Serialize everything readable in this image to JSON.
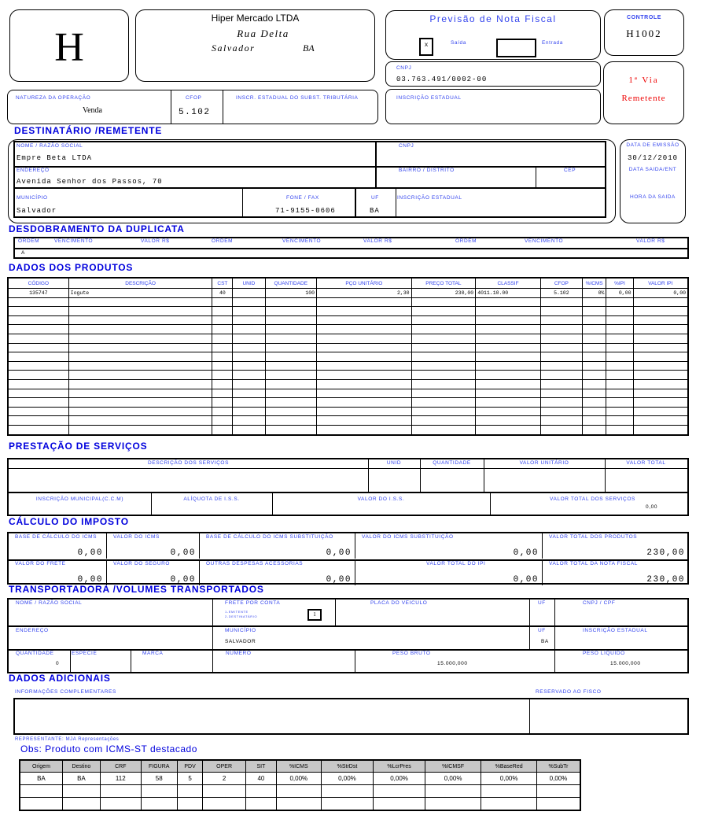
{
  "header": {
    "logo_letter": "H",
    "company": "Hiper Mercado LTDA",
    "street": "Rua Delta",
    "city": "Salvador",
    "state": "BA",
    "doc_title": "Previsão de Nota Fiscal",
    "saida_mark": "x",
    "saida_label": "Saída",
    "entrada_label": "Entrada",
    "controle_label": "CONTROLE",
    "controle_value": "H1002",
    "cnpj_label": "CNPJ",
    "cnpj_value": "03.763.491/0002-00",
    "via_line1": "1ª Via",
    "via_line2": "Remetente",
    "natureza_label": "NATUREZA DA OPERAÇÃO",
    "natureza_value": "Venda",
    "cfop_label": "CFOP",
    "cfop_value": "5.102",
    "inscr_subst_label": "INSCR. ESTADUAL DO SUBST. TRIBUTÁRIA",
    "inscr_estadual_label": "INSCRIÇÃO ESTADUAL"
  },
  "destinatario": {
    "title": "DESTINATÁRIO /REMETENTE",
    "nome_label": "NOME / RAZÃO SOCIAL",
    "nome": "Empre Beta LTDA",
    "cnpj_label": "CNPJ",
    "endereco_label": "ENDEREÇO",
    "endereco": "Avenida Senhor dos Passos, 70",
    "bairro_label": "BAIRRO / DISTRITO",
    "cep_label": "CEP",
    "municipio_label": "MUNICÍPIO",
    "municipio": "Salvador",
    "fone_label": "FONE / FAX",
    "fone": "71-9155-0606",
    "uf_label": "UF",
    "uf": "BA",
    "inscr_label": "INSCRIÇÃO ESTADUAL",
    "data_emissao_label": "DATA DE EMISSÃO",
    "data_emissao": "30/12/2010",
    "data_saida_label": "DATA SAIDA/ENT",
    "hora_saida_label": "HORA DA SAIDA"
  },
  "duplicata": {
    "title": "DESDOBRAMENTO DA DUPLICATA",
    "headers": [
      "ORDEM",
      "VENCIMENTO",
      "VALOR R$",
      "ORDEM",
      "VENCIMENTO",
      "VALOR R$",
      "ORDEM",
      "VENCIMENTO",
      "VALOR R$"
    ],
    "value": "A"
  },
  "produtos": {
    "title": "DADOS DOS PRODUTOS",
    "headers": [
      "CÓDIGO",
      "DESCRIÇÃO",
      "CST",
      "UNID",
      "QUANTIDADE",
      "PÇO UNITÁRIO",
      "PREÇO TOTAL",
      "CLASSIF",
      "CFOP",
      "%ICMS",
      "%IPI",
      "VALOR IPI"
    ],
    "rows": [
      [
        "135747",
        "Iogute",
        "40",
        "",
        "100",
        "2,30",
        "230,00",
        "4011.10.00",
        "5.102",
        "0%",
        "0,00",
        "0,00"
      ]
    ]
  },
  "servicos": {
    "title": "PRESTAÇÃO DE SERVIÇOS",
    "descricao_label": "DESCRIÇÃO DOS SERVIÇOS",
    "unid_label": "UNID",
    "quantidade_label": "QUANTIDADE",
    "valor_unit_label": "VALOR UNITÁRIO",
    "valor_total_label": "VALOR TOTAL",
    "inscr_municipal_label": "INSCRIÇÃO MUNICIPAL(C.C.M)",
    "aliquota_label": "ALÍQUOTA DE I.S.S.",
    "valor_iss_label": "VALOR DO I.S.S.",
    "total_servicos_label": "VALOR TOTAL DOS SERVIÇOS",
    "total_servicos": "0,00"
  },
  "imposto": {
    "title": "CÁLCULO DO IMPOSTO",
    "cells": [
      {
        "label": "BASE DE CÁLCULO DO ICMS",
        "value": "0,00"
      },
      {
        "label": "VALOR DO ICMS",
        "value": "0,00"
      },
      {
        "label": "BASE DE CÁLCULO DO ICMS SUBSTITUIÇÃO",
        "value": "0,00"
      },
      {
        "label": "VALOR DO ICMS SUBSTITUIÇÃO",
        "value": "0,00"
      },
      {
        "label": "VALOR TOTAL DOS PRODUTOS",
        "value": "230,00"
      },
      {
        "label": "VALOR DO FRETE",
        "value": "0,00"
      },
      {
        "label": "VALOR DO SEGURO",
        "value": "0,00"
      },
      {
        "label": "OUTRAS DESPESAS ACESSÓRIAS",
        "value": "0,00"
      },
      {
        "label": "VALOR TOTAL DO IPI",
        "value": "0,00"
      },
      {
        "label": "VALOR TOTAL DA NOTA FISCAL",
        "value": "230,00"
      }
    ]
  },
  "transportadora": {
    "title": "TRANSPORTADORA /VOLUMES TRANSPORTADOS",
    "nome_label": "NOME / RAZÃO SOCIAL",
    "frete_label": "FRETE POR CONTA",
    "frete_opt1": "1-EMITENTE",
    "frete_opt2": "2-DESTINATÁRIO",
    "frete_value": "1",
    "placa_label": "PLACA DO VEICULO",
    "uf_label": "UF",
    "cnpj_label": "CNPJ / CPF",
    "endereco_label": "ENDEREÇO",
    "municipio_label": "MUNICÍPIO",
    "municipio": "SALVADOR",
    "uf2_label": "UF",
    "uf2": "BA",
    "inscr_label": "INSCRIÇÃO ESTADUAL",
    "quantidade_label": "QUANTIDADE",
    "quantidade": "0",
    "especie_label": "ESPÉCIE",
    "marca_label": "MARCA",
    "numero_label": "NÚMERO",
    "peso_bruto_label": "PESO BRUTO",
    "peso_bruto": "15.000,000",
    "peso_liquido_label": "PESO LÍQUIDO",
    "peso_liquido": "15.000,000"
  },
  "adicionais": {
    "title": "DADOS ADICIONAIS",
    "info_label": "INFORMAÇÕES COMPLEMENTARES",
    "fisco_label": "RESERVADO AO FISCO",
    "representante": "REPRESENTANTE: MJA Representações",
    "obs": "Obs: Produto com ICMS-ST destacado"
  },
  "obs_table": {
    "headers": [
      "Origem",
      "Destino",
      "CRF",
      "FIGURA",
      "PDV",
      "OPER",
      "SIT",
      "%ICMS",
      "%StrDst",
      "%LcrPres",
      "%ICMSF",
      "%BaseRed",
      "%SubTr"
    ],
    "rows": [
      [
        "BA",
        "BA",
        "112",
        "58",
        "5",
        "2",
        "40",
        "0,00%",
        "0,00%",
        "0,00%",
        "0,00%",
        "0,00%",
        "0,00%"
      ]
    ]
  },
  "colors": {
    "label_blue": "#3344ee",
    "heading_blue": "#0000dd",
    "via_red": "#ee0000",
    "header_grey": "#c8c8c8"
  }
}
